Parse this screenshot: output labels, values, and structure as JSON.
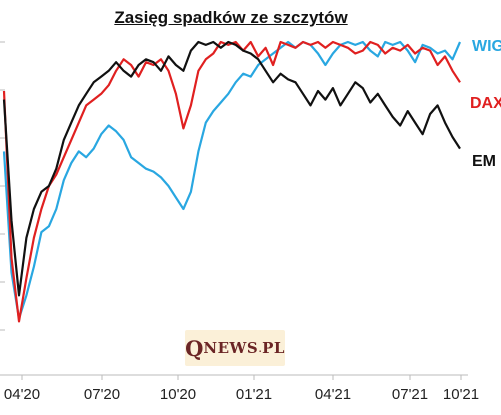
{
  "chart_data": {
    "type": "line",
    "title": "Zasięg spadków ze szczytów",
    "x_tick_labels": [
      "04'20",
      "07'20",
      "10'20",
      "01'21",
      "04'21",
      "07'21",
      "10'21"
    ],
    "grid": false,
    "legend": "series labels at right end of lines",
    "series": [
      {
        "name": "WIG",
        "color": "#29a7e1",
        "values": [
          0.62,
          0.2,
          0.04,
          0.12,
          0.22,
          0.34,
          0.36,
          0.42,
          0.52,
          0.58,
          0.62,
          0.6,
          0.63,
          0.68,
          0.71,
          0.69,
          0.66,
          0.6,
          0.58,
          0.56,
          0.55,
          0.53,
          0.5,
          0.46,
          0.42,
          0.48,
          0.62,
          0.72,
          0.76,
          0.79,
          0.82,
          0.86,
          0.89,
          0.88,
          0.92,
          0.94,
          0.96,
          0.98,
          1.0,
          0.98,
          1.0,
          0.99,
          0.96,
          0.92,
          0.96,
          0.99,
          1.0,
          0.99,
          1.0,
          0.97,
          0.95,
          1.0,
          0.99,
          1.0,
          0.97,
          0.93,
          0.99,
          0.98,
          0.96,
          0.97,
          0.94,
          1.0
        ]
      },
      {
        "name": "DAX",
        "color": "#e02020",
        "values": [
          0.83,
          0.25,
          0.03,
          0.18,
          0.32,
          0.42,
          0.5,
          0.54,
          0.6,
          0.66,
          0.72,
          0.78,
          0.8,
          0.82,
          0.85,
          0.9,
          0.94,
          0.92,
          0.88,
          0.93,
          0.92,
          0.94,
          0.9,
          0.82,
          0.7,
          0.78,
          0.9,
          0.94,
          0.96,
          1.0,
          0.99,
          1.0,
          0.97,
          1.0,
          0.95,
          0.98,
          0.92,
          1.0,
          0.99,
          0.98,
          1.0,
          0.99,
          1.0,
          0.98,
          1.0,
          0.99,
          0.98,
          0.96,
          0.97,
          1.0,
          0.99,
          0.96,
          0.98,
          0.97,
          0.99,
          0.96,
          0.98,
          0.97,
          0.92,
          0.95,
          0.9,
          0.86
        ]
      },
      {
        "name": "EM",
        "color": "#111111",
        "values": [
          0.8,
          0.38,
          0.12,
          0.32,
          0.42,
          0.48,
          0.5,
          0.56,
          0.66,
          0.72,
          0.78,
          0.82,
          0.86,
          0.88,
          0.9,
          0.93,
          0.9,
          0.88,
          0.92,
          0.94,
          0.93,
          0.9,
          0.95,
          0.92,
          0.9,
          0.97,
          1.0,
          0.99,
          1.0,
          0.98,
          1.0,
          0.99,
          0.97,
          0.96,
          0.94,
          0.9,
          0.86,
          0.89,
          0.87,
          0.86,
          0.82,
          0.78,
          0.83,
          0.8,
          0.84,
          0.78,
          0.82,
          0.86,
          0.84,
          0.79,
          0.82,
          0.78,
          0.74,
          0.71,
          0.76,
          0.72,
          0.68,
          0.75,
          0.78,
          0.72,
          0.67,
          0.63
        ]
      }
    ]
  },
  "watermark": {
    "q": "Q",
    "news": "NEWS",
    "dot": ".",
    "pl": "PL"
  }
}
